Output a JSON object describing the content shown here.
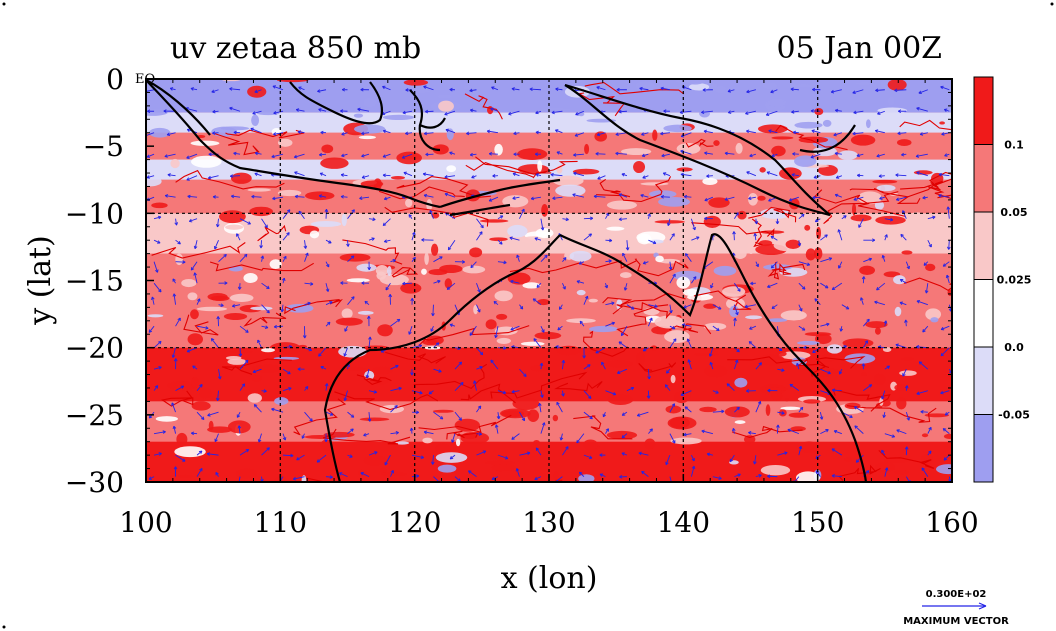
{
  "chart_data": {
    "type": "heatmap",
    "title_left": "uv zetaa 850 mb",
    "title_right": "05 Jan 00Z",
    "xlabel": "x (lon)",
    "ylabel": "y (lat)",
    "xlim": [
      100,
      160
    ],
    "ylim": [
      -30,
      0
    ],
    "x_ticks": [
      "100",
      "110",
      "120",
      "130",
      "140",
      "150",
      "160"
    ],
    "y_ticks": [
      "0",
      "−5",
      "−10",
      "−15",
      "−20",
      "−25",
      "−30"
    ],
    "corner_label": "EQ",
    "grid": true,
    "colorbar": {
      "levels": [
        "0.1",
        "0.05",
        "0.025",
        "0.0",
        "-0.05"
      ],
      "colors": [
        "#f01a1a",
        "#f57878",
        "#f9c8c8",
        "#ffffff",
        "#dcdcf8",
        "#9e9ef0"
      ]
    },
    "vector_legend": {
      "value": "0.300E+02",
      "label": "MAXIMUM VECTOR",
      "color": "#2424e6"
    },
    "coastline_color": "#000000",
    "contour_color": "#e00000"
  }
}
